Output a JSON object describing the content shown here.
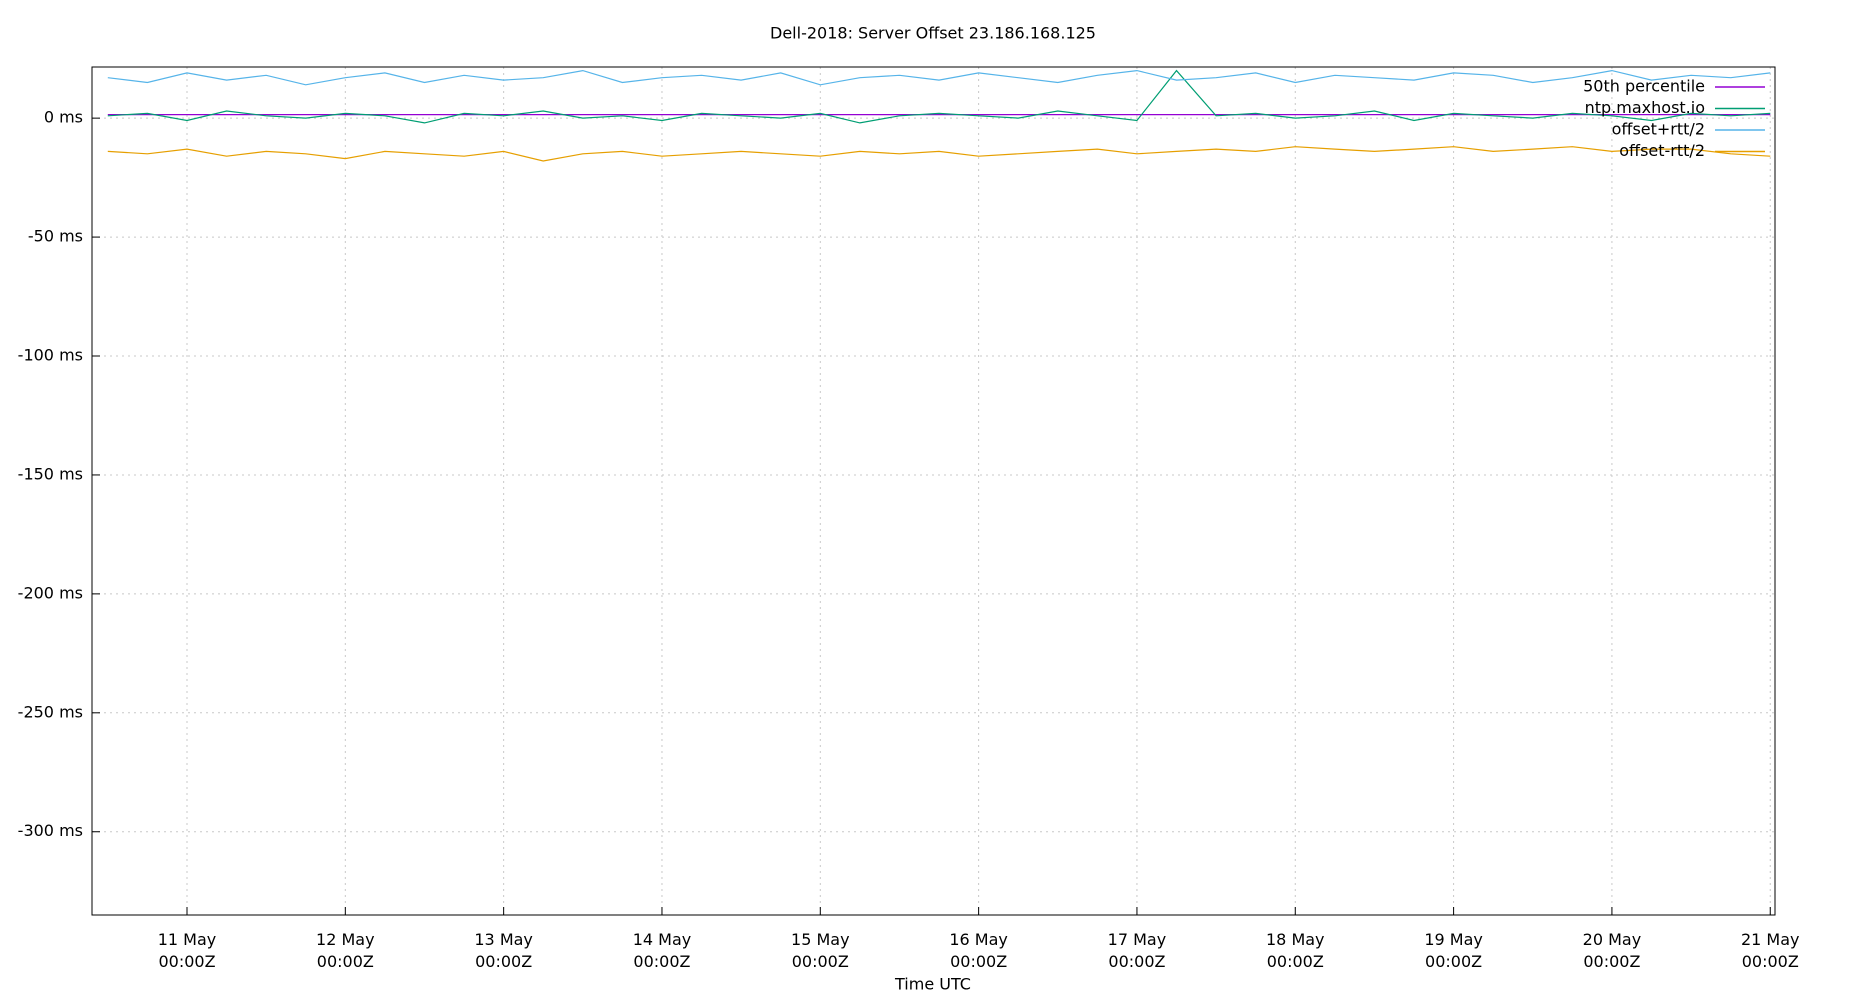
{
  "chart_data": {
    "type": "line",
    "title": "Dell-2018: Server Offset 23.186.168.125",
    "x_label": "Time UTC",
    "x": [
      10.5,
      10.75,
      11,
      11.25,
      11.5,
      11.75,
      12,
      12.25,
      12.5,
      12.75,
      13,
      13.25,
      13.5,
      13.75,
      14,
      14.25,
      14.5,
      14.75,
      15,
      15.25,
      15.5,
      15.75,
      16,
      16.25,
      16.5,
      16.75,
      17,
      17.25,
      17.5,
      17.75,
      18,
      18.25,
      18.5,
      18.75,
      19,
      19.25,
      19.5,
      19.75,
      20,
      20.25,
      20.5,
      20.75,
      21
    ],
    "series": [
      {
        "name": "50th percentile",
        "color": "#9400d3",
        "values": [
          1.5,
          1.5,
          1.5,
          1.5,
          1.5,
          1.5,
          1.5,
          1.5,
          1.5,
          1.5,
          1.5,
          1.5,
          1.5,
          1.5,
          1.5,
          1.5,
          1.5,
          1.5,
          1.5,
          1.5,
          1.5,
          1.5,
          1.5,
          1.5,
          1.5,
          1.5,
          1.5,
          1.5,
          1.5,
          1.5,
          1.5,
          1.5,
          1.5,
          1.5,
          1.5,
          1.5,
          1.5,
          1.5,
          1.5,
          1.5,
          1.5,
          1.5,
          1.5
        ]
      },
      {
        "name": "ntp.maxhost.io",
        "color": "#009e73",
        "values": [
          1,
          2,
          -1,
          3,
          1,
          0,
          2,
          1,
          -2,
          2,
          1,
          3,
          0,
          1,
          -1,
          2,
          1,
          0,
          2,
          -2,
          1,
          2,
          1,
          0,
          3,
          1,
          -1,
          20,
          1,
          2,
          0,
          1,
          3,
          -1,
          2,
          1,
          0,
          2,
          1,
          -1,
          2,
          1,
          2
        ]
      },
      {
        "name": "offset+rtt/2",
        "color": "#56b4e9",
        "values": [
          17,
          15,
          19,
          16,
          18,
          14,
          17,
          19,
          15,
          18,
          16,
          17,
          20,
          15,
          17,
          18,
          16,
          19,
          14,
          17,
          18,
          16,
          19,
          17,
          15,
          18,
          20,
          16,
          17,
          19,
          15,
          18,
          17,
          16,
          19,
          18,
          15,
          17,
          20,
          16,
          18,
          17,
          19
        ]
      },
      {
        "name": "offset-rtt/2",
        "color": "#e69f00",
        "values": [
          -14,
          -15,
          -13,
          -16,
          -14,
          -15,
          -17,
          -14,
          -15,
          -16,
          -14,
          -18,
          -15,
          -14,
          -16,
          -15,
          -14,
          -15,
          -16,
          -14,
          -15,
          -14,
          -16,
          -15,
          -14,
          -13,
          -15,
          -14,
          -13,
          -14,
          -12,
          -13,
          -14,
          -13,
          -12,
          -14,
          -13,
          -12,
          -14,
          -13,
          -13,
          -15,
          -16
        ]
      }
    ],
    "xlim": [
      10.4,
      21.03
    ],
    "xticks": [
      {
        "value": 11,
        "label": "11 May\n00:00Z"
      },
      {
        "value": 12,
        "label": "12 May\n00:00Z"
      },
      {
        "value": 13,
        "label": "13 May\n00:00Z"
      },
      {
        "value": 14,
        "label": "14 May\n00:00Z"
      },
      {
        "value": 15,
        "label": "15 May\n00:00Z"
      },
      {
        "value": 16,
        "label": "16 May\n00:00Z"
      },
      {
        "value": 17,
        "label": "17 May\n00:00Z"
      },
      {
        "value": 18,
        "label": "18 May\n00:00Z"
      },
      {
        "value": 19,
        "label": "19 May\n00:00Z"
      },
      {
        "value": 20,
        "label": "20 May\n00:00Z"
      },
      {
        "value": 21,
        "label": "21 May\n00:00Z"
      }
    ],
    "ylim": [
      -335,
      21.5
    ],
    "yticks": [
      {
        "value": 0,
        "label": "0 ms"
      },
      {
        "value": -50,
        "label": "-50 ms"
      },
      {
        "value": -100,
        "label": "-100 ms"
      },
      {
        "value": -150,
        "label": "-150 ms"
      },
      {
        "value": -200,
        "label": "-200 ms"
      },
      {
        "value": -250,
        "label": "-250 ms"
      },
      {
        "value": -300,
        "label": "-300 ms"
      }
    ],
    "grid": true,
    "legend": "upper right"
  }
}
